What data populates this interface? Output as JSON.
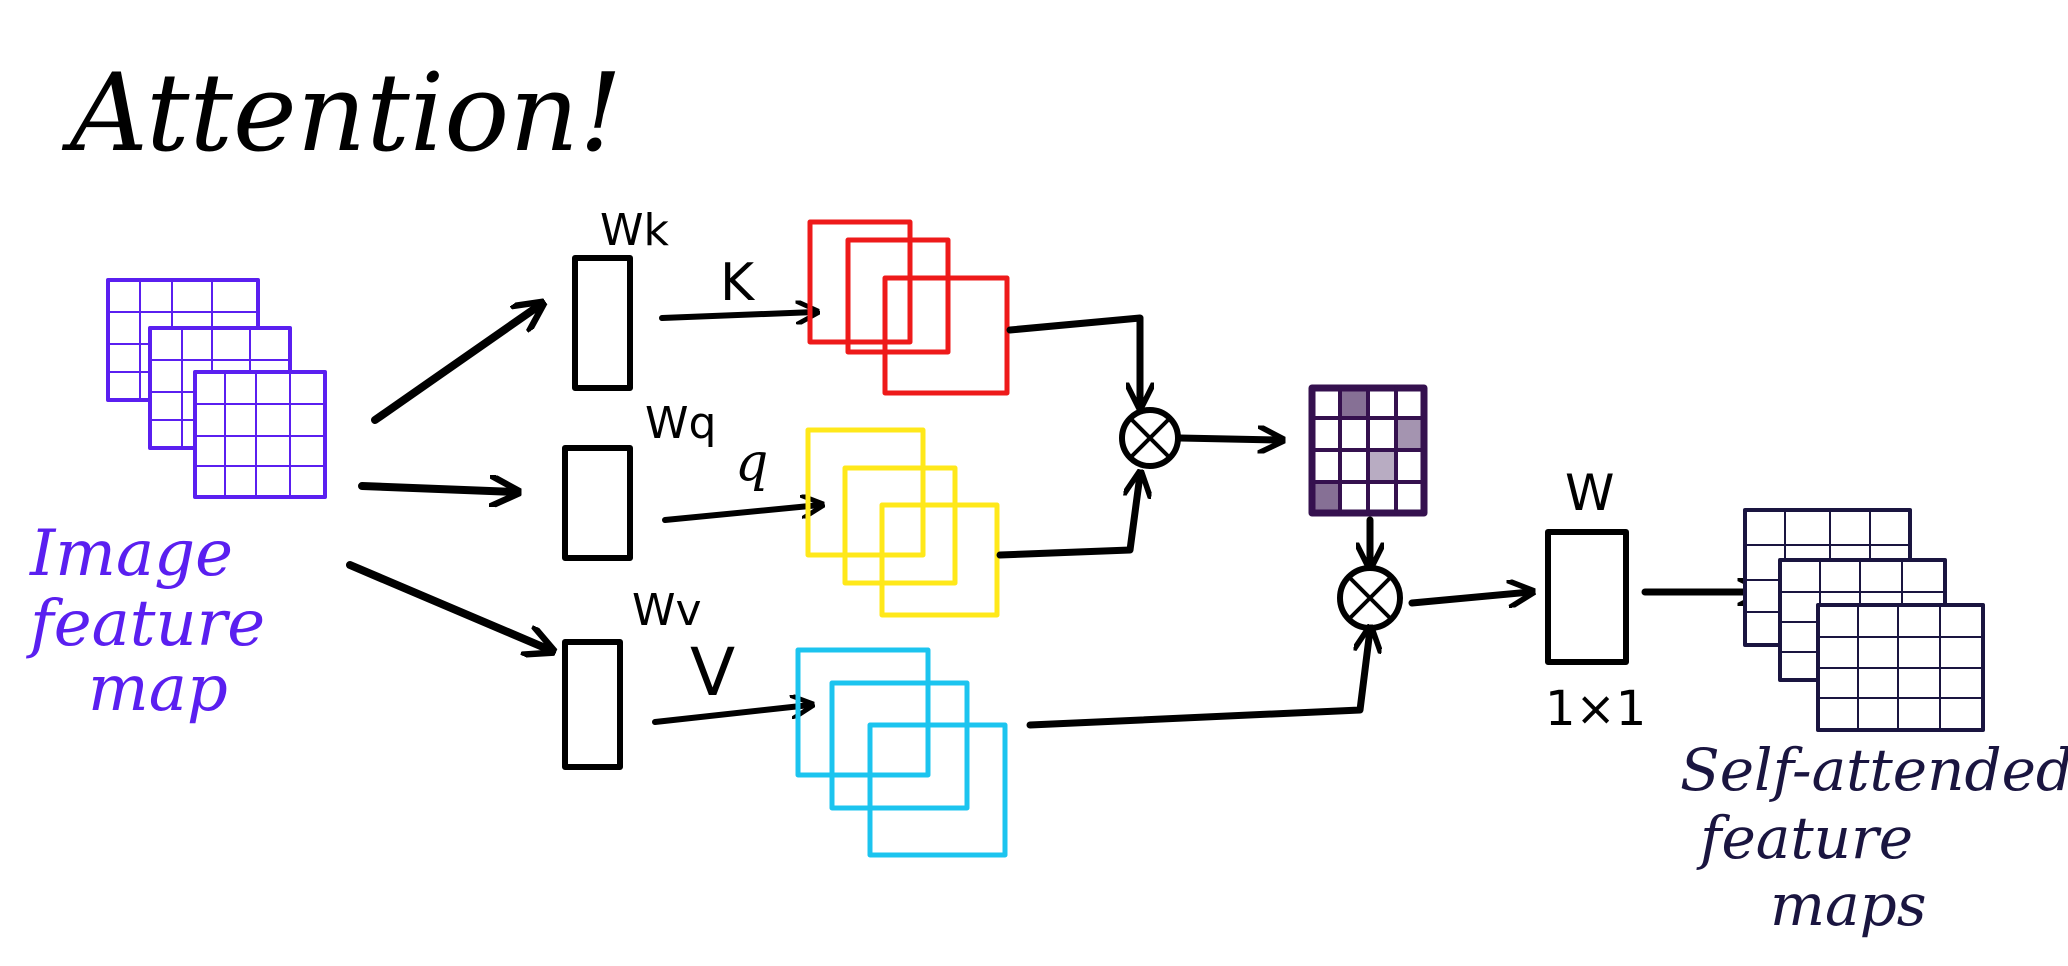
{
  "diagram": {
    "title": "Attention!",
    "input_label_lines": [
      "Image",
      "feature",
      "map"
    ],
    "output_label_lines": [
      "Self-attended",
      "feature",
      "maps"
    ],
    "weights": {
      "key": "Wk",
      "query": "Wq",
      "value": "Wv",
      "output": "W",
      "output_size": "1×1"
    },
    "branches": {
      "key": "K",
      "query": "q",
      "value": "V"
    },
    "operations": {
      "multiply_symbol": "⊗"
    }
  },
  "colors": {
    "ink": "#000000",
    "input": "#5a1ff0",
    "key": "#ee1a1a",
    "query": "#ffe81a",
    "value": "#1cc4ef",
    "attention_map": "#35114f",
    "output": "#1a1540"
  },
  "icons": [
    "input-feature-stack",
    "weight-box",
    "key-map-stack",
    "query-map-stack",
    "value-map-stack",
    "multiply-node-icon",
    "attention-map-grid",
    "output-feature-stack",
    "arrow-icon"
  ]
}
